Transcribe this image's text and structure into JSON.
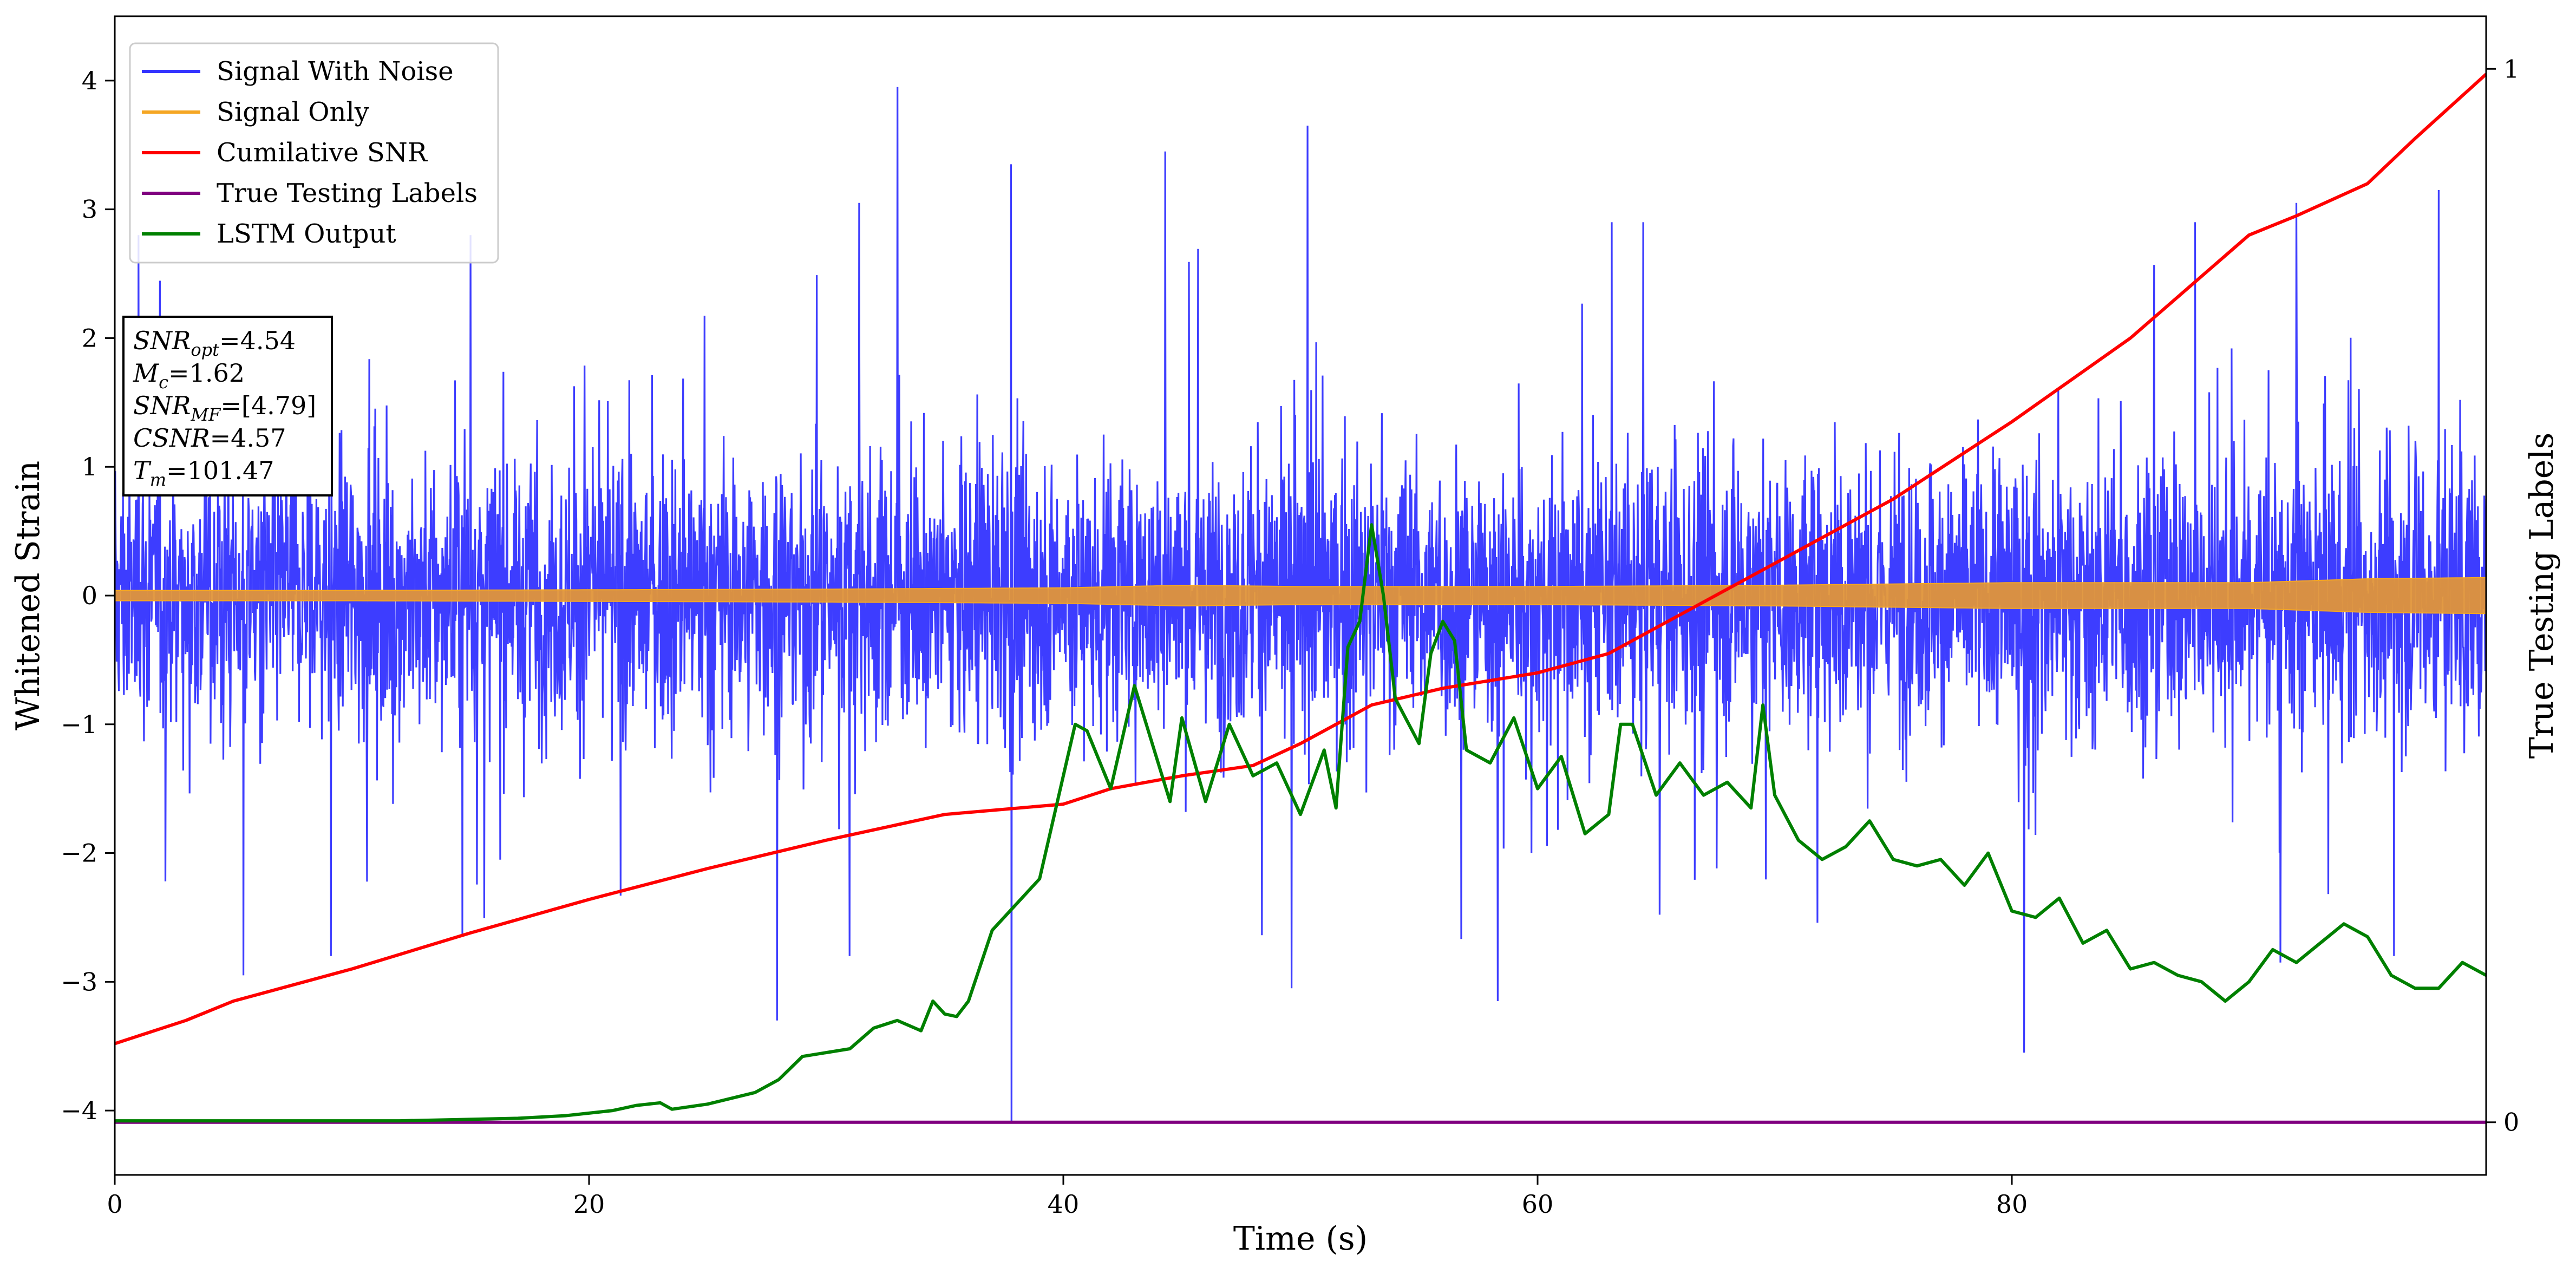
{
  "chart_data": {
    "type": "line",
    "xlabel": "Time (s)",
    "ylabel": "Whitened Strain",
    "y2label": "True Testing Labels",
    "xlim": [
      0,
      100
    ],
    "ylim": [
      -4.5,
      4.5
    ],
    "y2lim": [
      -0.05,
      1.05
    ],
    "x_ticks": [
      0,
      20,
      40,
      60,
      80
    ],
    "y_ticks": [
      -4,
      -3,
      -2,
      -1,
      0,
      1,
      2,
      3,
      4
    ],
    "y2_ticks": [
      0,
      1
    ],
    "grid": false,
    "legend_position": "top-left",
    "series": [
      {
        "name": "Signal With Noise",
        "color": "#3333ff",
        "axis": "left",
        "kind": "noise",
        "x_range": [
          0,
          100
        ],
        "approx_core_band": [
          -1.0,
          1.0
        ],
        "peaks": [
          {
            "x": 33.0,
            "y": 3.95
          },
          {
            "x": 50.3,
            "y": 3.65
          },
          {
            "x": 37.8,
            "y": 3.35
          },
          {
            "x": 44.3,
            "y": 3.45
          },
          {
            "x": 31.4,
            "y": 3.05
          },
          {
            "x": 98.0,
            "y": 3.15
          },
          {
            "x": 15.0,
            "y": 2.8
          },
          {
            "x": 1.0,
            "y": 2.8
          },
          {
            "x": 92.0,
            "y": 3.05
          }
        ],
        "troughs": [
          {
            "x": 37.8,
            "y": -4.1
          },
          {
            "x": 80.5,
            "y": -3.55
          },
          {
            "x": 27.9,
            "y": -3.3
          },
          {
            "x": 58.3,
            "y": -3.15
          },
          {
            "x": 5.4,
            "y": -2.95
          },
          {
            "x": 49.6,
            "y": -3.05
          },
          {
            "x": 9.1,
            "y": -2.8
          },
          {
            "x": 96.1,
            "y": -2.8
          },
          {
            "x": 91.3,
            "y": -2.85
          }
        ]
      },
      {
        "name": "Signal Only",
        "color": "#f5a623",
        "axis": "left",
        "kind": "band",
        "x": [
          0,
          10,
          20,
          30,
          40,
          45,
          50,
          60,
          70,
          80,
          90,
          95,
          100
        ],
        "amplitude": [
          0.04,
          0.04,
          0.045,
          0.05,
          0.06,
          0.08,
          0.07,
          0.07,
          0.08,
          0.1,
          0.1,
          0.13,
          0.14
        ]
      },
      {
        "name": "Cumilative SNR",
        "color": "#ff0000",
        "axis": "left",
        "x": [
          0,
          3,
          5,
          10,
          15,
          20,
          25,
          30,
          35,
          40,
          42,
          45,
          48,
          50,
          53,
          56,
          60,
          63,
          65,
          70,
          75,
          80,
          85,
          90,
          92,
          95,
          97,
          100
        ],
        "y": [
          -3.48,
          -3.3,
          -3.15,
          -2.9,
          -2.62,
          -2.36,
          -2.12,
          -1.9,
          -1.7,
          -1.62,
          -1.5,
          -1.4,
          -1.32,
          -1.15,
          -0.85,
          -0.72,
          -0.6,
          -0.45,
          -0.25,
          0.25,
          0.75,
          1.35,
          2.0,
          2.8,
          2.95,
          3.2,
          3.55,
          4.05
        ]
      },
      {
        "name": "True Testing Labels",
        "color": "#800080",
        "axis": "right",
        "x": [
          0,
          100
        ],
        "y": [
          0,
          0
        ]
      },
      {
        "name": "LSTM Output",
        "color": "#008000",
        "axis": "left",
        "x": [
          0,
          12,
          17,
          19,
          21,
          22,
          23,
          23.5,
          25,
          27,
          28,
          29,
          31,
          32,
          33,
          34,
          34.5,
          35,
          35.5,
          36,
          37,
          38,
          39,
          40,
          40.5,
          41,
          42,
          43,
          44,
          44.5,
          45,
          46,
          47,
          48,
          49,
          50,
          51,
          51.5,
          52,
          52.5,
          53,
          53.5,
          54,
          55,
          55.5,
          56,
          56.5,
          57,
          58,
          59,
          60,
          61,
          62,
          63,
          63.5,
          64,
          65,
          66,
          67,
          68,
          69,
          69.5,
          70,
          71,
          72,
          73,
          74,
          75,
          76,
          77,
          78,
          79,
          80,
          81,
          82,
          83,
          84,
          85,
          86,
          87,
          88,
          89,
          90,
          91,
          92,
          93,
          94,
          95,
          96,
          97,
          98,
          99,
          100
        ],
        "y": [
          -4.08,
          -4.08,
          -4.06,
          -4.04,
          -4.0,
          -3.96,
          -3.94,
          -3.99,
          -3.95,
          -3.86,
          -3.76,
          -3.58,
          -3.52,
          -3.36,
          -3.3,
          -3.38,
          -3.15,
          -3.25,
          -3.27,
          -3.15,
          -2.6,
          -2.4,
          -2.2,
          -1.4,
          -1.0,
          -1.05,
          -1.5,
          -0.7,
          -1.3,
          -1.6,
          -0.95,
          -1.6,
          -1.0,
          -1.4,
          -1.3,
          -1.7,
          -1.2,
          -1.65,
          -0.4,
          -0.2,
          0.55,
          0.0,
          -0.8,
          -1.15,
          -0.45,
          -0.2,
          -0.35,
          -1.2,
          -1.3,
          -0.95,
          -1.5,
          -1.25,
          -1.85,
          -1.7,
          -1.0,
          -1.0,
          -1.55,
          -1.3,
          -1.55,
          -1.45,
          -1.65,
          -0.85,
          -1.55,
          -1.9,
          -2.05,
          -1.95,
          -1.75,
          -2.05,
          -2.1,
          -2.05,
          -2.25,
          -2.0,
          -2.45,
          -2.5,
          -2.35,
          -2.7,
          -2.6,
          -2.9,
          -2.85,
          -2.95,
          -3.0,
          -3.15,
          -3.0,
          -2.75,
          -2.85,
          -2.7,
          -2.55,
          -2.65,
          -2.95,
          -3.05,
          -3.05,
          -2.85,
          -2.95
        ]
      }
    ]
  },
  "annotation": {
    "lines": [
      {
        "base": "SNR",
        "sub": "opt",
        "value": "=4.54"
      },
      {
        "base": "M",
        "sub": "c",
        "value": "=1.62"
      },
      {
        "base": "SNR",
        "sub": "MF",
        "value": "=[4.79]"
      },
      {
        "base": "CSNR",
        "sub": "",
        "value": "=4.57"
      },
      {
        "base": "T",
        "sub": "m",
        "value": "=101.47"
      }
    ]
  }
}
